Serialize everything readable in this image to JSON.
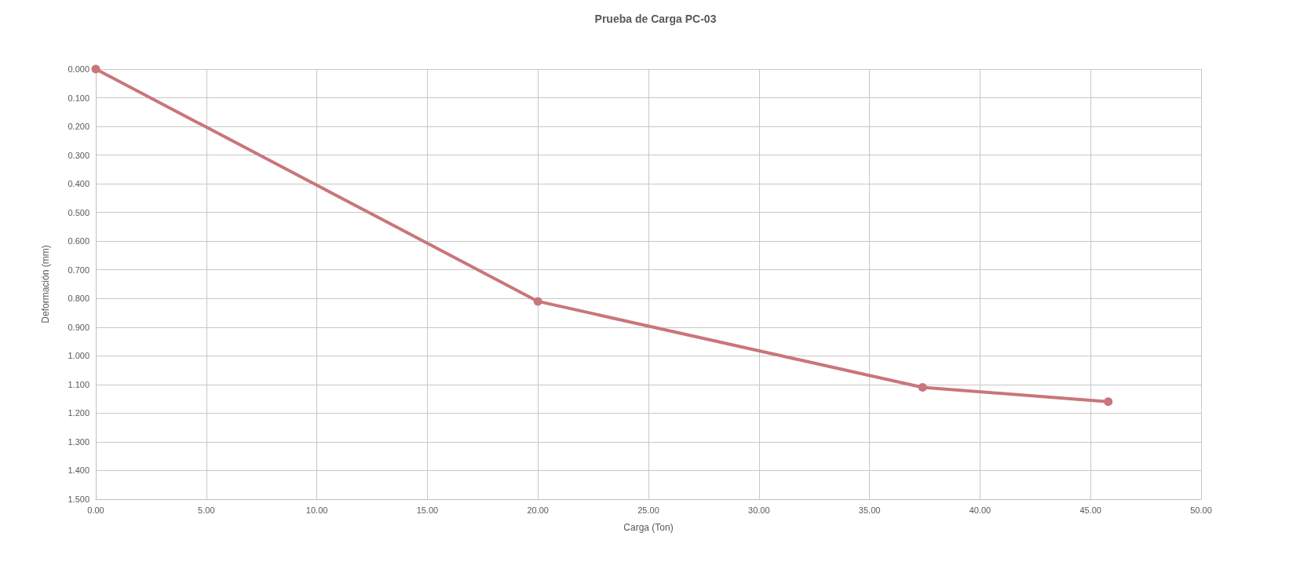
{
  "chart_data": {
    "type": "line",
    "title": "Prueba de Carga PC-03",
    "xlabel": "Carga (Ton)",
    "ylabel": "Deformación (mm)",
    "x": [
      0,
      20,
      37.4,
      45.8
    ],
    "series": [
      {
        "color": "#c9767a",
        "values": [
          0,
          0.81,
          1.11,
          1.16
        ]
      }
    ],
    "xlim": [
      0,
      50
    ],
    "xticks": [
      {
        "value": 0,
        "label": "0.00"
      },
      {
        "value": 5,
        "label": "5.00"
      },
      {
        "value": 10,
        "label": "10.00"
      },
      {
        "value": 15,
        "label": "15.00"
      },
      {
        "value": 20,
        "label": "20.00"
      },
      {
        "value": 25,
        "label": "25.00"
      },
      {
        "value": 30,
        "label": "30.00"
      },
      {
        "value": 35,
        "label": "35.00"
      },
      {
        "value": 40,
        "label": "40.00"
      },
      {
        "value": 45,
        "label": "45.00"
      },
      {
        "value": 50,
        "label": "50.00"
      }
    ],
    "ylim": [
      1.5,
      0
    ],
    "yticks": [
      {
        "value": 0,
        "label": "0.000"
      },
      {
        "value": 0.1,
        "label": "0.100"
      },
      {
        "value": 0.2,
        "label": "0.200"
      },
      {
        "value": 0.3,
        "label": "0.300"
      },
      {
        "value": 0.4,
        "label": "0.400"
      },
      {
        "value": 0.5,
        "label": "0.500"
      },
      {
        "value": 0.6,
        "label": "0.600"
      },
      {
        "value": 0.7,
        "label": "0.700"
      },
      {
        "value": 0.8,
        "label": "0.800"
      },
      {
        "value": 0.9,
        "label": "0.900"
      },
      {
        "value": 1,
        "label": "1.000"
      },
      {
        "value": 1.1,
        "label": "1.100"
      },
      {
        "value": 1.2,
        "label": "1.200"
      },
      {
        "value": 1.3,
        "label": "1.300"
      },
      {
        "value": 1.4,
        "label": "1.400"
      },
      {
        "value": 1.5,
        "label": "1.500"
      }
    ],
    "grid": true,
    "marker": "circle",
    "line_style": "solid"
  }
}
